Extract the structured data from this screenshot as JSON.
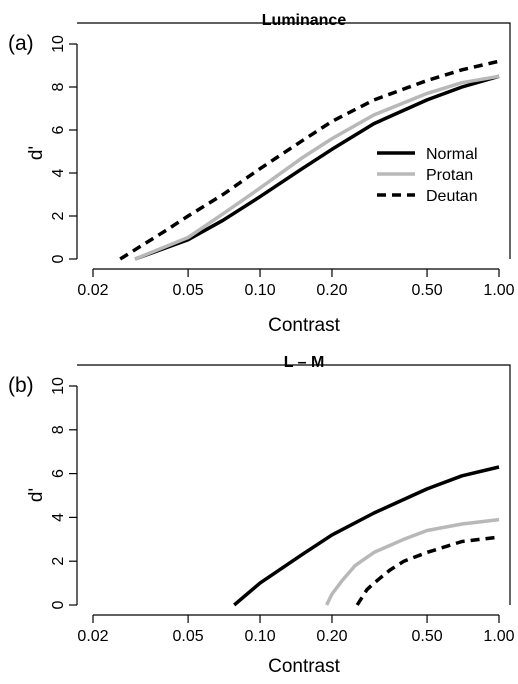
{
  "chart_data": [
    {
      "type": "line",
      "panel_label": "(a)",
      "title": "Luminance",
      "xlabel": "Contrast",
      "ylabel": "d'",
      "x_scale": "log",
      "xlim": [
        0.02,
        1.0
      ],
      "ylim": [
        0,
        10
      ],
      "x_ticks": [
        0.02,
        0.05,
        0.1,
        0.2,
        0.5,
        1.0
      ],
      "x_tick_labels": [
        "0.02",
        "0.05",
        "0.10",
        "0.20",
        "0.50",
        "1.00"
      ],
      "y_ticks": [
        0,
        2,
        4,
        6,
        8,
        10
      ],
      "y_tick_labels": [
        "0",
        "2",
        "4",
        "6",
        "8",
        "10"
      ],
      "grid": false,
      "legend": "right",
      "series": [
        {
          "name": "Normal",
          "color": "#000000",
          "dash": "solid",
          "x": [
            0.03,
            0.05,
            0.07,
            0.1,
            0.15,
            0.2,
            0.3,
            0.5,
            0.7,
            1.0
          ],
          "y": [
            0.0,
            0.9,
            1.8,
            2.9,
            4.2,
            5.1,
            6.3,
            7.4,
            8.0,
            8.5
          ]
        },
        {
          "name": "Protan",
          "color": "#b8b8b8",
          "dash": "solid",
          "x": [
            0.03,
            0.05,
            0.07,
            0.1,
            0.15,
            0.2,
            0.3,
            0.5,
            0.7,
            1.0
          ],
          "y": [
            0.0,
            1.0,
            2.1,
            3.3,
            4.7,
            5.6,
            6.7,
            7.7,
            8.2,
            8.5
          ]
        },
        {
          "name": "Deutan",
          "color": "#000000",
          "dash": "dashed",
          "x": [
            0.026,
            0.04,
            0.05,
            0.07,
            0.1,
            0.15,
            0.2,
            0.3,
            0.5,
            0.7,
            1.0
          ],
          "y": [
            0.0,
            1.3,
            2.0,
            3.0,
            4.2,
            5.5,
            6.4,
            7.4,
            8.3,
            8.8,
            9.2
          ]
        }
      ]
    },
    {
      "type": "line",
      "panel_label": "(b)",
      "title": "L – M",
      "xlabel": "Contrast",
      "ylabel": "d'",
      "x_scale": "log",
      "xlim": [
        0.02,
        1.0
      ],
      "ylim": [
        0,
        10
      ],
      "x_ticks": [
        0.02,
        0.05,
        0.1,
        0.2,
        0.5,
        1.0
      ],
      "x_tick_labels": [
        "0.02",
        "0.05",
        "0.10",
        "0.20",
        "0.50",
        "1.00"
      ],
      "y_ticks": [
        0,
        2,
        4,
        6,
        8,
        10
      ],
      "y_tick_labels": [
        "0",
        "2",
        "4",
        "6",
        "8",
        "10"
      ],
      "grid": false,
      "series": [
        {
          "name": "Normal",
          "color": "#000000",
          "dash": "solid",
          "x": [
            0.078,
            0.1,
            0.15,
            0.2,
            0.3,
            0.5,
            0.7,
            1.0
          ],
          "y": [
            0.0,
            1.0,
            2.3,
            3.2,
            4.2,
            5.3,
            5.9,
            6.3
          ]
        },
        {
          "name": "Protan",
          "color": "#b8b8b8",
          "dash": "solid",
          "x": [
            0.19,
            0.2,
            0.22,
            0.25,
            0.3,
            0.4,
            0.5,
            0.7,
            1.0
          ],
          "y": [
            0.0,
            0.5,
            1.1,
            1.8,
            2.4,
            3.0,
            3.4,
            3.7,
            3.9
          ]
        },
        {
          "name": "Deutan",
          "color": "#000000",
          "dash": "dashed",
          "x": [
            0.255,
            0.28,
            0.3,
            0.35,
            0.4,
            0.5,
            0.7,
            1.0
          ],
          "y": [
            0.0,
            0.7,
            1.0,
            1.6,
            2.0,
            2.4,
            2.9,
            3.1
          ]
        }
      ]
    }
  ]
}
